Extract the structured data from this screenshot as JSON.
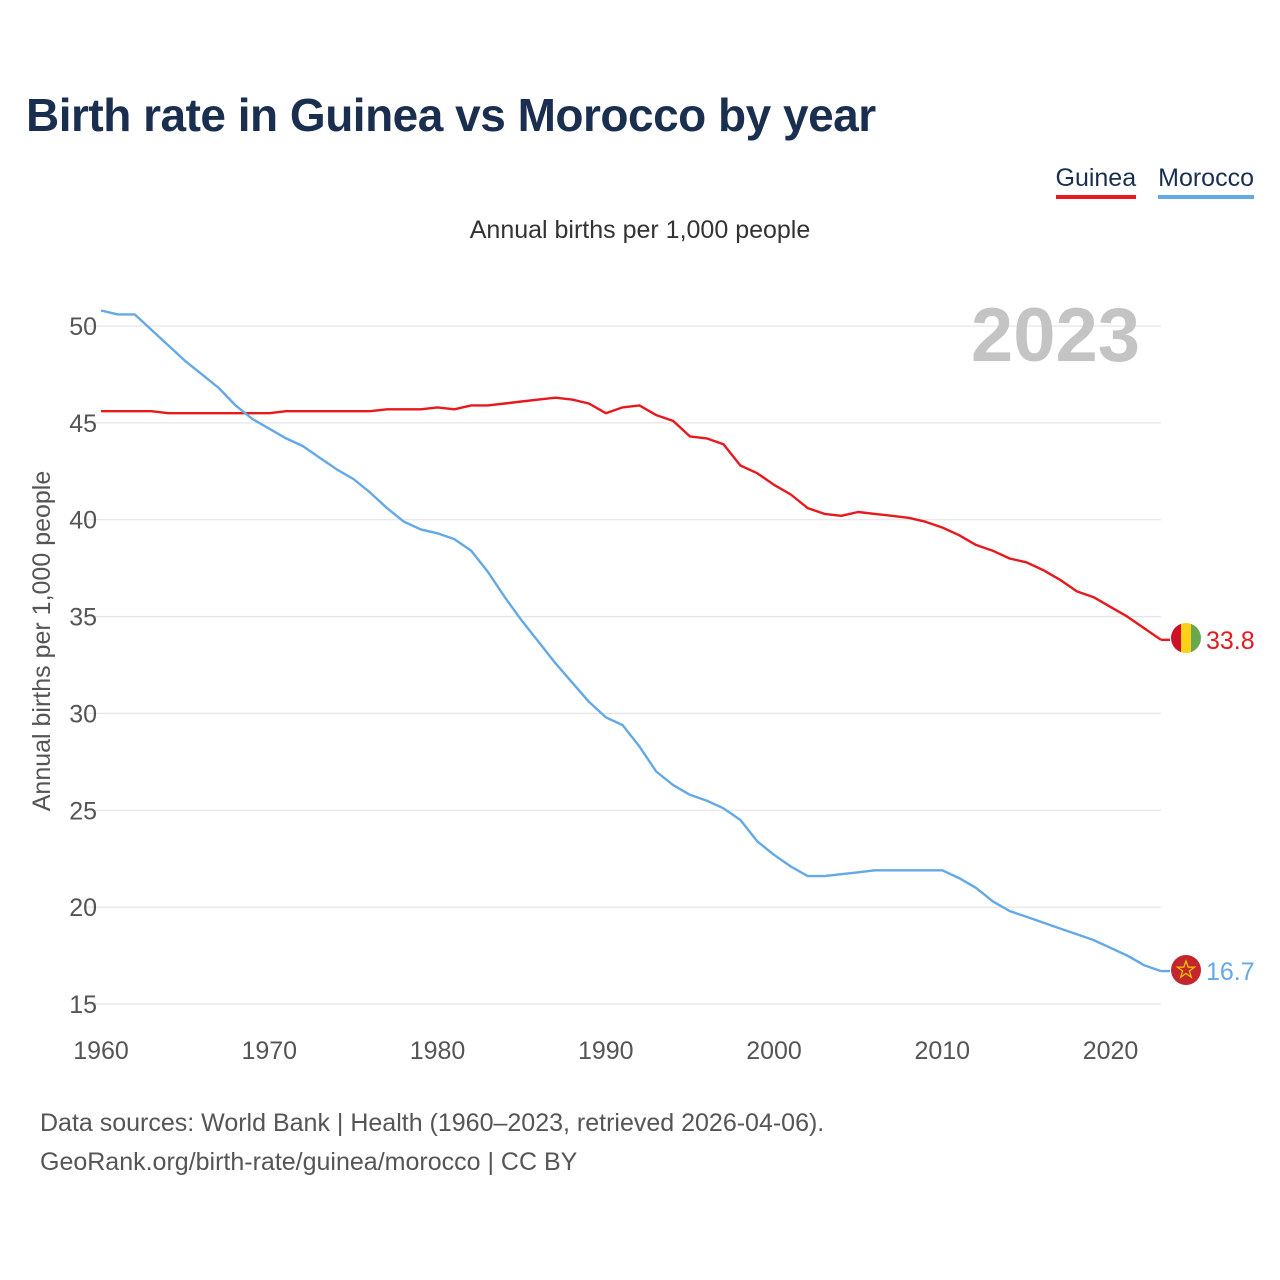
{
  "title": "Birth rate in Guinea vs Morocco by year",
  "subtitle": "Annual births per 1,000 people",
  "legend": [
    {
      "label": "Guinea",
      "color": "#e8191d"
    },
    {
      "label": "Morocco",
      "color": "#63a9e6"
    }
  ],
  "footer": {
    "line1": "Data sources: World Bank | Health (1960–2023, retrieved 2026-04-06).",
    "line2": "GeoRank.org/birth-rate/guinea/morocco | CC BY"
  },
  "chart_data": {
    "type": "line",
    "title": "Birth rate in Guinea vs Morocco by year",
    "ylabel": "Annual births per 1,000 people",
    "xlabel": "",
    "year_label": "2023",
    "xlim": [
      1960,
      2023
    ],
    "ylim": [
      15,
      51.5
    ],
    "xticks": [
      1960,
      1970,
      1980,
      1990,
      2000,
      2010,
      2020
    ],
    "yticks": [
      15,
      20,
      25,
      30,
      35,
      40,
      45,
      50
    ],
    "grid": true,
    "x": [
      1960,
      1961,
      1962,
      1963,
      1964,
      1965,
      1966,
      1967,
      1968,
      1969,
      1970,
      1971,
      1972,
      1973,
      1974,
      1975,
      1976,
      1977,
      1978,
      1979,
      1980,
      1981,
      1982,
      1983,
      1984,
      1985,
      1986,
      1987,
      1988,
      1989,
      1990,
      1991,
      1992,
      1993,
      1994,
      1995,
      1996,
      1997,
      1998,
      1999,
      2000,
      2001,
      2002,
      2003,
      2004,
      2005,
      2006,
      2007,
      2008,
      2009,
      2010,
      2011,
      2012,
      2013,
      2014,
      2015,
      2016,
      2017,
      2018,
      2019,
      2020,
      2021,
      2022,
      2023
    ],
    "series": [
      {
        "name": "Guinea",
        "color": "#e8191d",
        "end_label": "33.8",
        "values": [
          45.6,
          45.6,
          45.6,
          45.6,
          45.5,
          45.5,
          45.5,
          45.5,
          45.5,
          45.5,
          45.5,
          45.6,
          45.6,
          45.6,
          45.6,
          45.6,
          45.6,
          45.7,
          45.7,
          45.7,
          45.8,
          45.7,
          45.9,
          45.9,
          46.0,
          46.1,
          46.2,
          46.3,
          46.2,
          46.0,
          45.5,
          45.8,
          45.9,
          45.4,
          45.1,
          44.3,
          44.2,
          43.9,
          42.8,
          42.4,
          41.8,
          41.3,
          40.6,
          40.3,
          40.2,
          40.4,
          40.3,
          40.2,
          40.1,
          39.9,
          39.6,
          39.2,
          38.7,
          38.4,
          38.0,
          37.8,
          37.4,
          36.9,
          36.3,
          36.0,
          35.5,
          35.0,
          34.4,
          33.8
        ]
      },
      {
        "name": "Morocco",
        "color": "#63a9e6",
        "end_label": "16.7",
        "values": [
          50.8,
          50.6,
          50.6,
          49.8,
          49.0,
          48.2,
          47.5,
          46.8,
          45.9,
          45.2,
          44.7,
          44.2,
          43.8,
          43.2,
          42.6,
          42.1,
          41.4,
          40.6,
          39.9,
          39.5,
          39.3,
          39.0,
          38.4,
          37.3,
          36.0,
          34.8,
          33.7,
          32.6,
          31.6,
          30.6,
          29.8,
          29.4,
          28.3,
          27.0,
          26.3,
          25.8,
          25.5,
          25.1,
          24.5,
          23.4,
          22.7,
          22.1,
          21.6,
          21.6,
          21.7,
          21.8,
          21.9,
          21.9,
          21.9,
          21.9,
          21.9,
          21.5,
          21.0,
          20.3,
          19.8,
          19.5,
          19.2,
          18.9,
          18.6,
          18.3,
          17.9,
          17.5,
          17.0,
          16.7
        ]
      }
    ]
  }
}
